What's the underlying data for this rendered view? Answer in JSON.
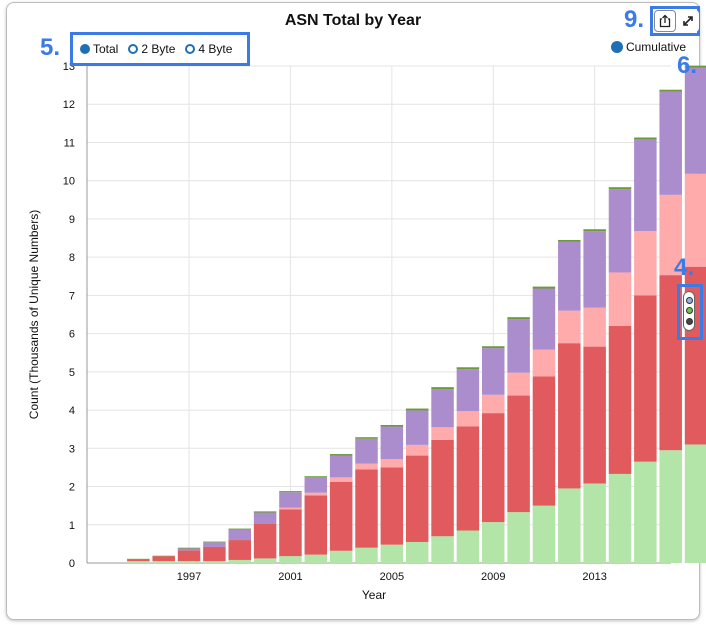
{
  "chart_data": {
    "type": "bar",
    "title": "ASN Total by Year",
    "xlabel": "Year",
    "ylabel": "Count (Thousands of Unique Numbers)",
    "ylim": [
      0,
      13
    ],
    "yticks": [
      "0",
      "1",
      "2",
      "3",
      "4",
      "5",
      "6",
      "7",
      "8",
      "9",
      "10",
      "11",
      "12",
      "13"
    ],
    "xticks": [
      {
        "label": "1997",
        "year": 1997
      },
      {
        "label": "2001",
        "year": 2001
      },
      {
        "label": "2005",
        "year": 2005
      },
      {
        "label": "2009",
        "year": 2009
      },
      {
        "label": "2013",
        "year": 2013
      }
    ],
    "stacked": true,
    "grid": true,
    "years": [
      1994,
      1995,
      1996,
      1997,
      1998,
      1999,
      2000,
      2001,
      2002,
      2003,
      2004,
      2005,
      2006,
      2007,
      2008,
      2009,
      2010,
      2011,
      2012,
      2013,
      2014,
      2015,
      2016,
      2017
    ],
    "series": [
      {
        "color": "#b2e5a7",
        "values": [
          0,
          0.05,
          0.05,
          0.05,
          0.05,
          0.08,
          0.12,
          0.18,
          0.22,
          0.32,
          0.4,
          0.48,
          0.55,
          0.7,
          0.85,
          1.07,
          1.33,
          1.5,
          1.95,
          2.08,
          2.33,
          2.65,
          2.95,
          3.1
        ]
      },
      {
        "color": "#e05a5e",
        "values": [
          0,
          0.05,
          0.13,
          0.28,
          0.37,
          0.52,
          0.9,
          1.22,
          1.55,
          1.8,
          2.05,
          2.02,
          2.26,
          2.52,
          2.72,
          2.85,
          3.05,
          3.38,
          3.8,
          3.58,
          3.87,
          4.35,
          4.58,
          4.65
        ]
      },
      {
        "color": "#ffaaab",
        "values": [
          0,
          0,
          0,
          0,
          0,
          0,
          0,
          0.05,
          0.07,
          0.12,
          0.15,
          0.22,
          0.28,
          0.33,
          0.4,
          0.48,
          0.6,
          0.7,
          0.85,
          1.02,
          1.4,
          1.68,
          2.1,
          2.43
        ]
      },
      {
        "color": "#ab8ccc",
        "values": [
          0,
          0,
          0,
          0.05,
          0.12,
          0.27,
          0.3,
          0.4,
          0.4,
          0.57,
          0.65,
          0.85,
          0.9,
          1.0,
          1.1,
          1.22,
          1.4,
          1.6,
          1.8,
          2.0,
          2.18,
          2.4,
          2.7,
          2.78
        ]
      },
      {
        "color": "#6c9a3a",
        "values": [
          0,
          0.01,
          0.01,
          0.02,
          0.02,
          0.03,
          0.03,
          0.03,
          0.03,
          0.04,
          0.04,
          0.04,
          0.05,
          0.05,
          0.05,
          0.05,
          0.05,
          0.05,
          0.05,
          0.05,
          0.05,
          0.05,
          0.05,
          0.05
        ]
      }
    ]
  },
  "legend": {
    "items": [
      {
        "label": "Total",
        "selected": true
      },
      {
        "label": "2 Byte",
        "selected": false
      },
      {
        "label": "4 Byte",
        "selected": false
      }
    ],
    "cumulative_label": "Cumulative"
  },
  "callouts": {
    "five": "5.",
    "six": "6.",
    "four": "4.",
    "nine": "9."
  },
  "icons": {
    "share": "share-icon",
    "expand": "expand-icon",
    "color_toggle": "color-toggle-icon"
  },
  "accent_color": "#3b7be5"
}
